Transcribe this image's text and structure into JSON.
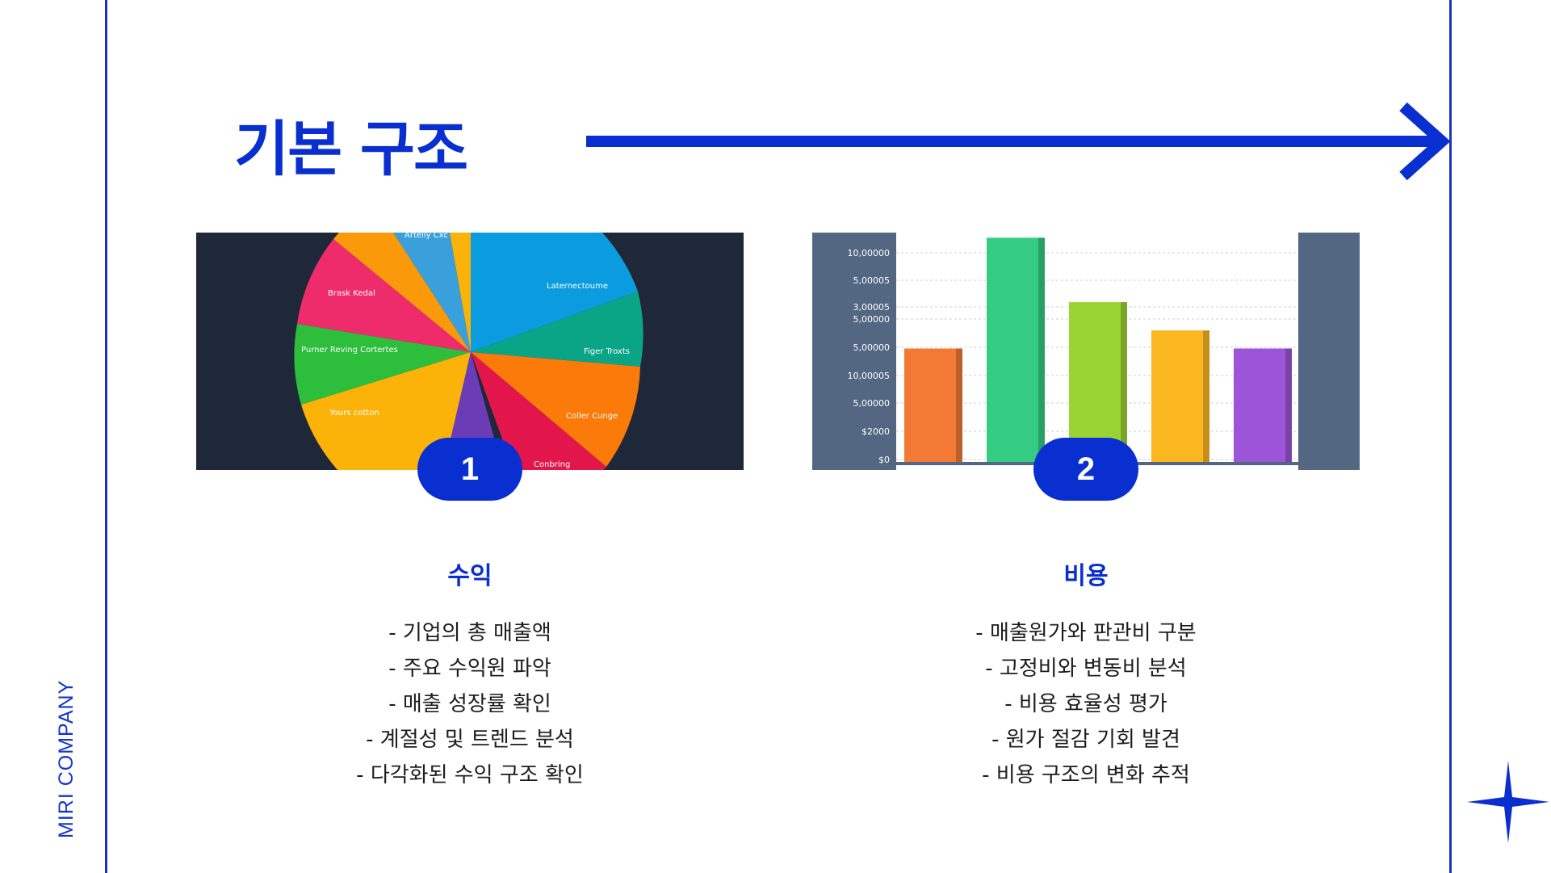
{
  "brand": "MIRI COMPANY",
  "title": "기본 구조",
  "colors": {
    "accent": "#0a2fd1",
    "line": "#1a33c7"
  },
  "pie_labels": [
    "Artelly Cxc",
    "Brask Kedal",
    "Purner Reving Cortertes",
    "Yours cotton",
    "Laternectoume",
    "Figer Troxts",
    "Coller Cunge",
    "Conbring"
  ],
  "chart_data": {
    "type": "bar",
    "yticks": [
      "10,00000",
      "5,00005",
      "3,00005",
      "5,00000",
      "5,00000",
      "10,00005",
      "5,00000",
      "$2000",
      "$0"
    ],
    "values": [
      4.5,
      8.8,
      6.3,
      5.2,
      4.5
    ],
    "colors": [
      "#f37a35",
      "#33cc82",
      "#9ad432",
      "#fbb720",
      "#9c55d8"
    ],
    "ylim": [
      0,
      9
    ],
    "grid": true
  },
  "sections": [
    {
      "badge": "1",
      "heading": "수익",
      "items": [
        "- 기업의 총 매출액",
        "- 주요 수익원 파악",
        "- 매출 성장률 확인",
        "- 계절성 및 트렌드 분석",
        "- 다각화된 수익 구조 확인"
      ]
    },
    {
      "badge": "2",
      "heading": "비용",
      "items": [
        "- 매출원가와 판관비 구분",
        "- 고정비와 변동비 분석",
        "- 비용 효율성 평가",
        "- 원가 절감 기회 발견",
        "- 비용 구조의 변화 추적"
      ]
    }
  ]
}
